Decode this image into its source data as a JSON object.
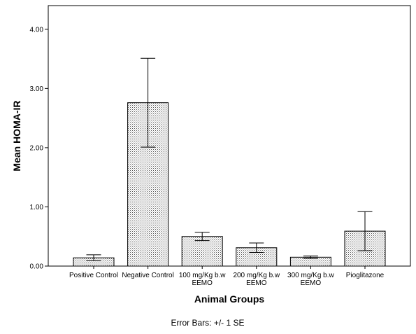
{
  "chart_data": {
    "type": "bar",
    "categories": [
      [
        "Positive Control"
      ],
      [
        "Negative Control"
      ],
      [
        "100 mg/Kg b.w",
        "EEMO"
      ],
      [
        "200 mg/Kg b.w",
        "EEMO"
      ],
      [
        "300 mg/Kg b.w",
        "EEMO"
      ],
      [
        "Pioglitazone"
      ]
    ],
    "values": [
      0.14,
      2.76,
      0.5,
      0.31,
      0.15,
      0.59
    ],
    "error": [
      0.05,
      0.75,
      0.07,
      0.08,
      0.02,
      0.33
    ],
    "xlabel": "Animal Groups",
    "ylabel": "Mean HOMA-IR",
    "ylim": [
      0,
      4.4
    ],
    "yticks": [
      "0.00",
      "1.00",
      "2.00",
      "3.00",
      "4.00"
    ],
    "ytick_values": [
      0,
      1,
      2,
      3,
      4
    ],
    "footnote": "Error Bars: +/- 1 SE",
    "grid": false,
    "bar_fill": "dotted-pattern",
    "colors": {
      "bar_fill": "#ffffff",
      "dots": "#555555",
      "stroke": "#000000"
    }
  }
}
